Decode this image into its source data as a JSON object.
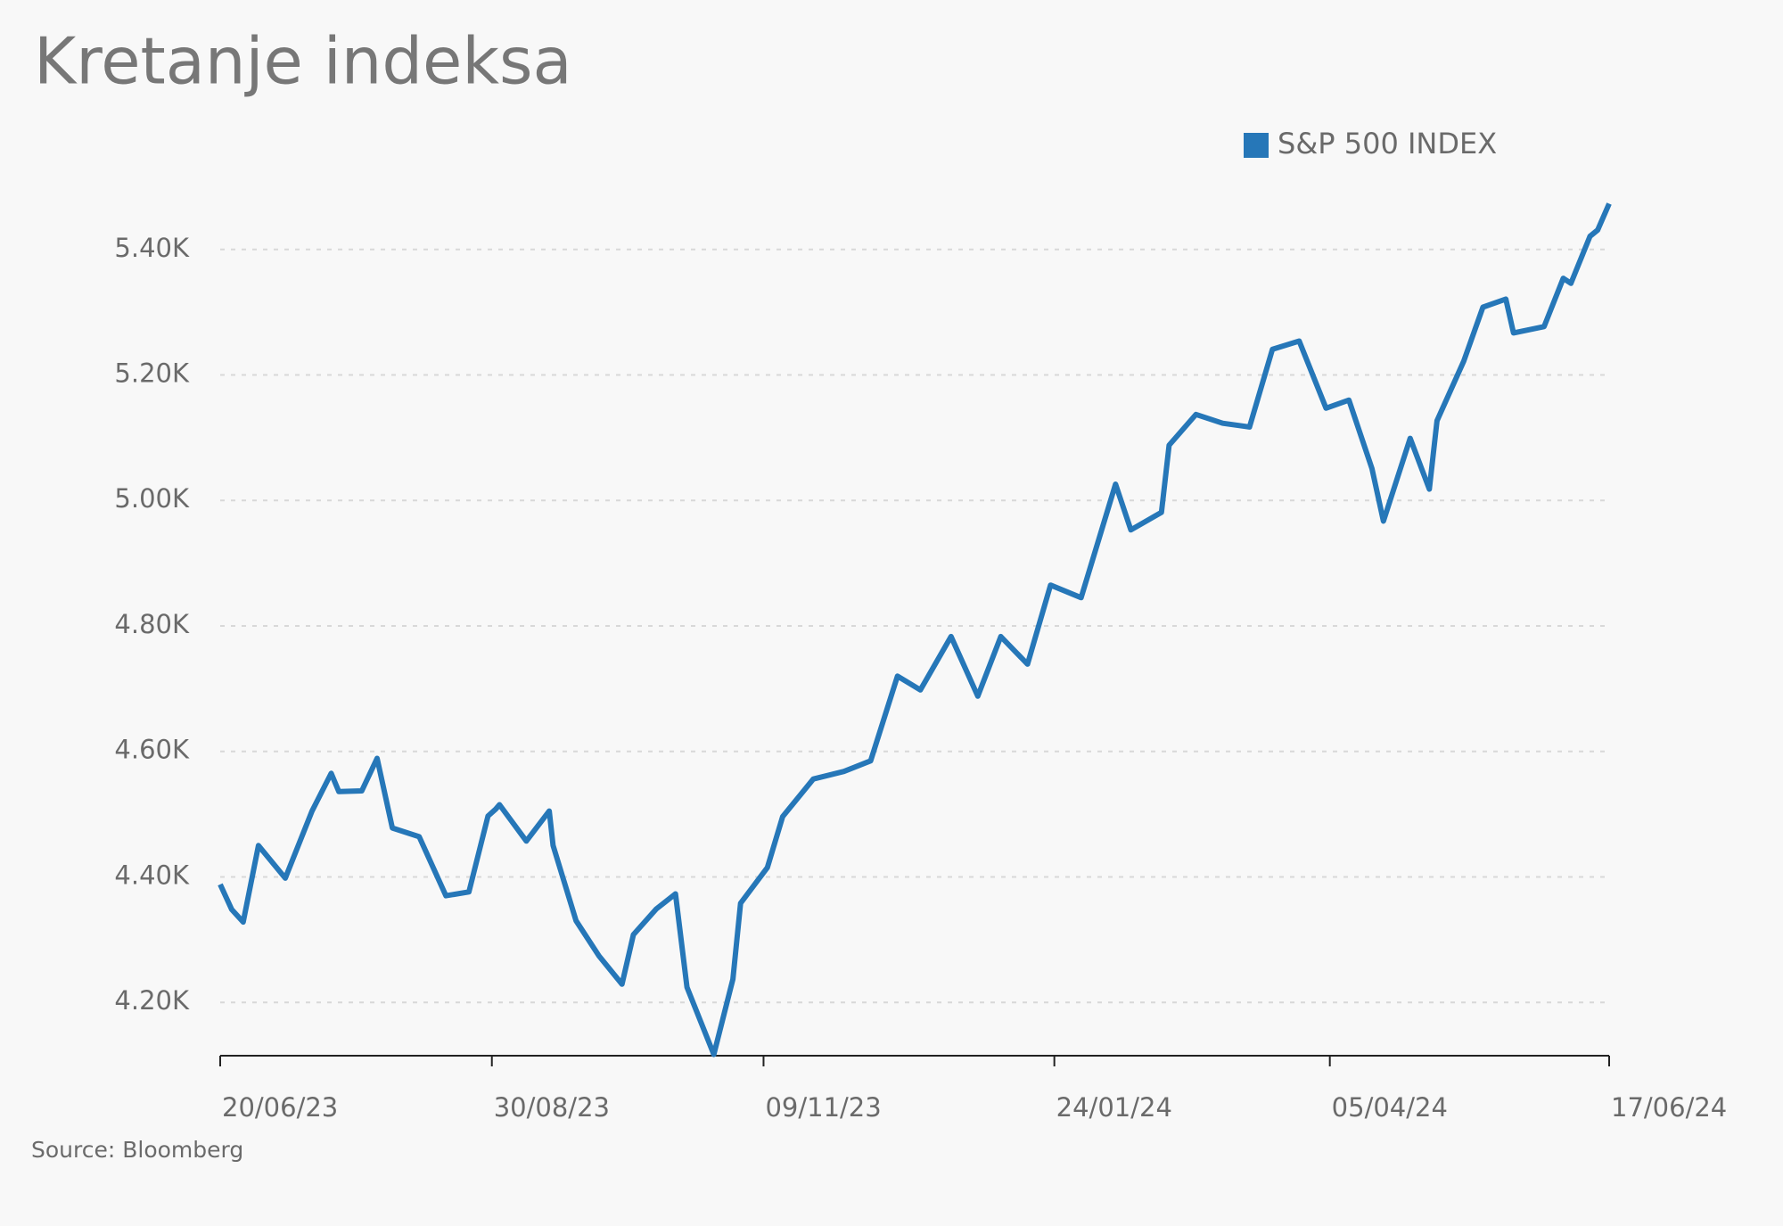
{
  "chart_data": {
    "type": "line",
    "title": "Kretanje indeksa",
    "source": "Source: Bloomberg",
    "legend": "top-right",
    "grid": true,
    "x": [
      "2023-06-20",
      "2023-06-23",
      "2023-06-26",
      "2023-06-30",
      "2023-07-07",
      "2023-07-14",
      "2023-07-19",
      "2023-07-21",
      "2023-07-27",
      "2023-07-31",
      "2023-08-04",
      "2023-08-11",
      "2023-08-18",
      "2023-08-24",
      "2023-08-29",
      "2023-08-31",
      "2023-09-01",
      "2023-09-08",
      "2023-09-14",
      "2023-09-15",
      "2023-09-21",
      "2023-09-27",
      "2023-10-03",
      "2023-10-06",
      "2023-10-12",
      "2023-10-17",
      "2023-10-20",
      "2023-10-27",
      "2023-11-01",
      "2023-11-03",
      "2023-11-10",
      "2023-11-14",
      "2023-11-22",
      "2023-11-30",
      "2023-12-07",
      "2023-12-14",
      "2023-12-20",
      "2023-12-28",
      "2024-01-04",
      "2024-01-10",
      "2024-01-17",
      "2024-01-23",
      "2024-01-31",
      "2024-02-09",
      "2024-02-13",
      "2024-02-21",
      "2024-02-23",
      "2024-03-01",
      "2024-03-08",
      "2024-03-15",
      "2024-03-21",
      "2024-03-28",
      "2024-04-04",
      "2024-04-10",
      "2024-04-16",
      "2024-04-19",
      "2024-04-26",
      "2024-05-01",
      "2024-05-03",
      "2024-05-10",
      "2024-05-15",
      "2024-05-21",
      "2024-05-23",
      "2024-05-31",
      "2024-06-05",
      "2024-06-07",
      "2024-06-12",
      "2024-06-14",
      "2024-06-17"
    ],
    "series": [
      {
        "name": "S&P 500 INDEX",
        "color": "#2677b8",
        "values": [
          4388,
          4348,
          4328,
          4450,
          4398,
          4505,
          4565,
          4536,
          4537,
          4589,
          4478,
          4464,
          4370,
          4376,
          4497,
          4508,
          4515,
          4457,
          4505,
          4450,
          4330,
          4274,
          4229,
          4308,
          4349,
          4373,
          4224,
          4117,
          4237,
          4358,
          4415,
          4496,
          4556,
          4568,
          4585,
          4720,
          4698,
          4783,
          4688,
          4783,
          4739,
          4865,
          4845,
          5026,
          4953,
          4981,
          5088,
          5137,
          5123,
          5117,
          5241,
          5254,
          5147,
          5160,
          5051,
          4967,
          5099,
          5018,
          5127,
          5222,
          5308,
          5321,
          5267,
          5277,
          5354,
          5346,
          5421,
          5431,
          5473
        ]
      }
    ],
    "xlim": [
      "2023-06-20",
      "2024-06-17"
    ],
    "xticks": [
      {
        "value": "2023-06-20",
        "label": "20/06/23"
      },
      {
        "value": "2023-08-30",
        "label": "30/08/23"
      },
      {
        "value": "2023-11-09",
        "label": "09/11/23"
      },
      {
        "value": "2024-01-24",
        "label": "24/01/24"
      },
      {
        "value": "2024-04-05",
        "label": "05/04/24"
      },
      {
        "value": "2024-06-17",
        "label": "17/06/24"
      }
    ],
    "ylim": [
      4115,
      5475
    ],
    "yticks": [
      {
        "value": 4200,
        "label": "4.20K"
      },
      {
        "value": 4400,
        "label": "4.40K"
      },
      {
        "value": 4600,
        "label": "4.60K"
      },
      {
        "value": 4800,
        "label": "4.80K"
      },
      {
        "value": 5000,
        "label": "5.00K"
      },
      {
        "value": 5200,
        "label": "5.20K"
      },
      {
        "value": 5400,
        "label": "5.40K"
      }
    ]
  }
}
